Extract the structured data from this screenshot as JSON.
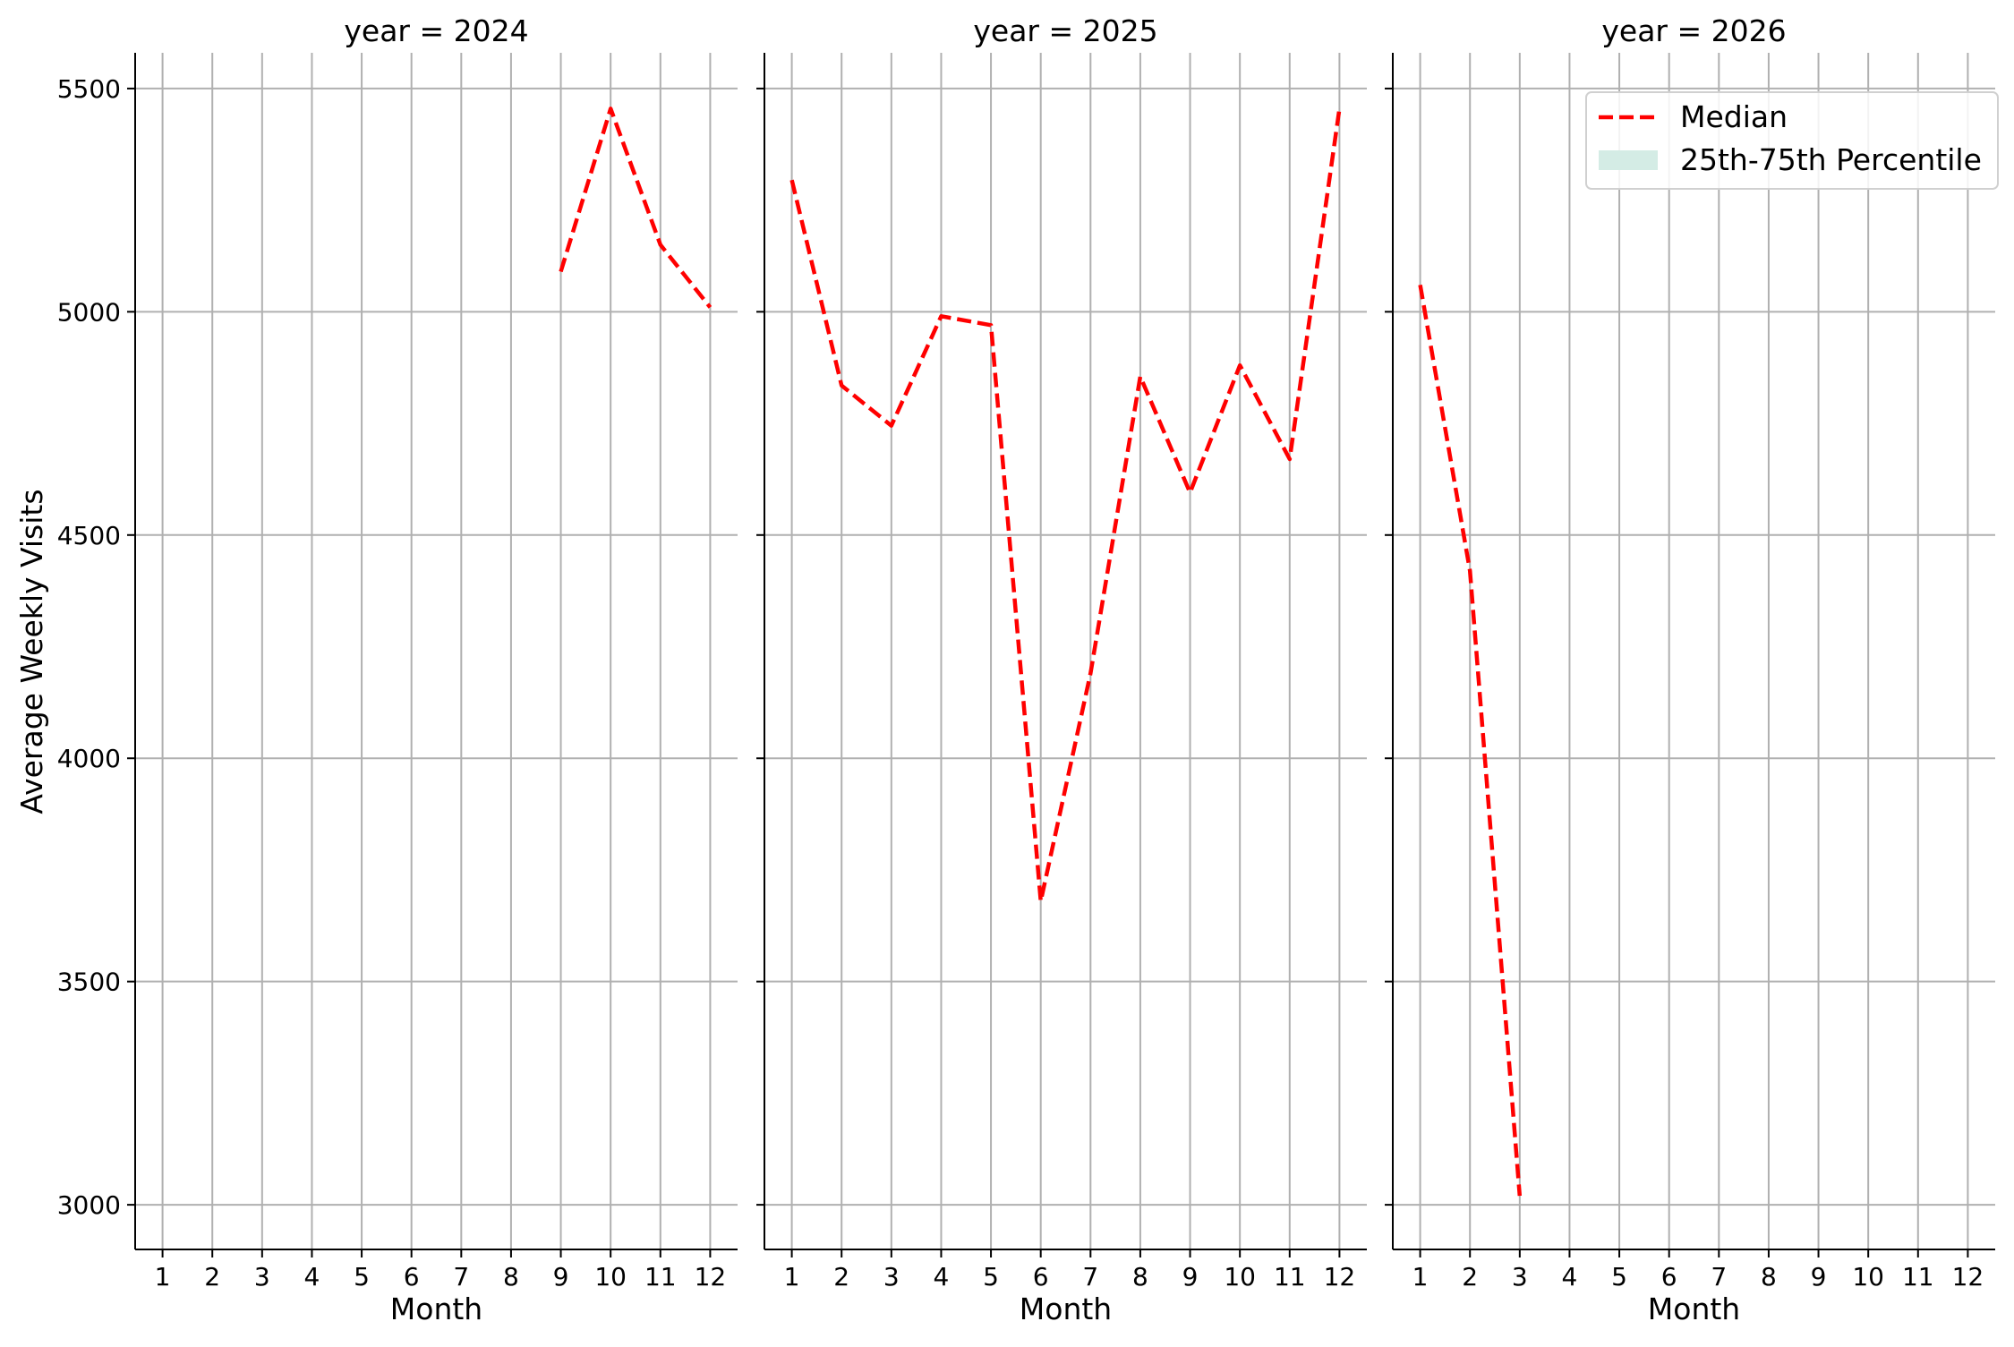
{
  "chart_data": {
    "type": "line",
    "ylabel": "Average Weekly Visits",
    "xlabel": "Month",
    "ylim": [
      2900,
      5580
    ],
    "xlim": [
      0.45,
      12.55
    ],
    "yticks": [
      3000,
      3500,
      4000,
      4500,
      5000,
      5500
    ],
    "xticks": [
      1,
      2,
      3,
      4,
      5,
      6,
      7,
      8,
      9,
      10,
      11,
      12
    ],
    "grid": true,
    "legend": {
      "location": "top-right",
      "items": [
        {
          "label": "Median",
          "style": "dashed-line",
          "color": "#ff0000"
        },
        {
          "label": "25th-75th Percentile",
          "style": "band",
          "color": "#d4ece5"
        }
      ]
    },
    "panels": [
      {
        "title": "year = 2024",
        "series": [
          {
            "name": "Median",
            "x": [
              9,
              10,
              11,
              12
            ],
            "y": [
              5090,
              5455,
              5150,
              5010
            ]
          }
        ]
      },
      {
        "title": "year = 2025",
        "series": [
          {
            "name": "Median",
            "x": [
              1,
              2,
              3,
              4,
              5,
              6,
              7,
              8,
              9,
              10,
              11,
              12
            ],
            "y": [
              5295,
              4835,
              4745,
              4990,
              4970,
              3680,
              4190,
              4855,
              4595,
              4880,
              4670,
              5455
            ]
          }
        ]
      },
      {
        "title": "year = 2026",
        "series": [
          {
            "name": "Median",
            "x": [
              1,
              2,
              3
            ],
            "y": [
              5060,
              4420,
              3020
            ]
          }
        ]
      }
    ],
    "colors": {
      "median_line": "#ff0000",
      "grid": "#b0b0b0",
      "band": "#d4ece5"
    }
  }
}
